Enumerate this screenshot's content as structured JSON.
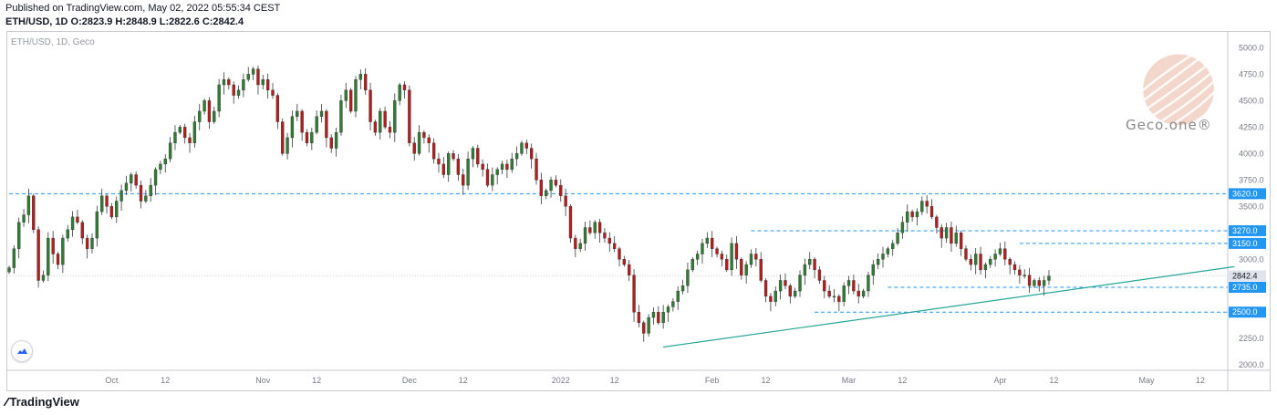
{
  "header": {
    "published": "Published on TradingView.com, May 02, 2022 05:55:34 CEST",
    "ohlc": "ETH/USD, 1D O:2823.9 H:2848.9 L:2822.6 C:2842.4"
  },
  "footer": {
    "brand": "TradingView"
  },
  "watermark": {
    "text": "Geco.one®"
  },
  "colors": {
    "up": "#26a69a",
    "down": "#b71c1c",
    "upBody": "#2e7d32",
    "level": "#2196f3",
    "trend": "#26a69a",
    "current": "#787b86"
  },
  "chart_data": {
    "type": "candlestick",
    "symbol_label": "ETH/USD, 1D, Geco",
    "y_range": [
      1950,
      5150
    ],
    "y_ticks": [
      2000.0,
      2250.0,
      2500.0,
      2750.0,
      3000.0,
      3250.0,
      3500.0,
      3750.0,
      4000.0,
      4250.0,
      4500.0,
      4750.0,
      5000.0
    ],
    "x_labels": [
      {
        "day": 21,
        "label": "Oct"
      },
      {
        "day": 32,
        "label": "12"
      },
      {
        "day": 52,
        "label": "Nov"
      },
      {
        "day": 63,
        "label": "12"
      },
      {
        "day": 82,
        "label": "Dec"
      },
      {
        "day": 93,
        "label": "12"
      },
      {
        "day": 113,
        "label": "2022"
      },
      {
        "day": 124,
        "label": "12"
      },
      {
        "day": 144,
        "label": "Feb"
      },
      {
        "day": 155,
        "label": "12"
      },
      {
        "day": 172,
        "label": "Mar"
      },
      {
        "day": 183,
        "label": "12"
      },
      {
        "day": 203,
        "label": "Apr"
      },
      {
        "day": 214,
        "label": "12"
      },
      {
        "day": 233,
        "label": "May"
      },
      {
        "day": 244,
        "label": "12"
      }
    ],
    "levels": [
      {
        "value": 3620.0,
        "label": "3620.0",
        "from_day": 0
      },
      {
        "value": 3270.0,
        "label": "3270.0",
        "from_day": 152
      },
      {
        "value": 3150.0,
        "label": "3150.0",
        "from_day": 207
      },
      {
        "value": 2735.0,
        "label": "2735.0",
        "from_day": 180
      },
      {
        "value": 2500.0,
        "label": "2500.0",
        "from_day": 165
      }
    ],
    "current": {
      "value": 2842.4,
      "label": "2842.4"
    },
    "trendline": {
      "from": [
        134,
        2170
      ],
      "to": [
        251,
        2930
      ]
    },
    "closes": [
      2920,
      3100,
      3350,
      3420,
      3600,
      3280,
      2800,
      2850,
      3200,
      3050,
      2950,
      3200,
      3280,
      3400,
      3350,
      3200,
      3100,
      3200,
      3450,
      3600,
      3500,
      3400,
      3550,
      3650,
      3720,
      3800,
      3700,
      3550,
      3600,
      3700,
      3850,
      3900,
      3950,
      4100,
      4200,
      4250,
      4150,
      4100,
      4300,
      4400,
      4500,
      4300,
      4400,
      4650,
      4700,
      4650,
      4550,
      4600,
      4700,
      4750,
      4800,
      4650,
      4700,
      4600,
      4550,
      4300,
      4000,
      4150,
      4350,
      4400,
      4200,
      4100,
      4200,
      4350,
      4400,
      4150,
      4050,
      4200,
      4500,
      4600,
      4400,
      4700,
      4750,
      4600,
      4300,
      4200,
      4400,
      4250,
      4200,
      4500,
      4650,
      4600,
      4100,
      4000,
      4200,
      4150,
      4100,
      3950,
      3900,
      3800,
      4000,
      3950,
      3800,
      3700,
      3950,
      4050,
      3900,
      3850,
      3700,
      3800,
      3850,
      3900,
      3850,
      3950,
      4000,
      4100,
      4050,
      3950,
      3750,
      3600,
      3650,
      3750,
      3700,
      3600,
      3500,
      3200,
      3100,
      3150,
      3300,
      3250,
      3350,
      3250,
      3200,
      3150,
      3100,
      3000,
      2950,
      2850,
      2500,
      2400,
      2300,
      2450,
      2500,
      2400,
      2500,
      2550,
      2600,
      2700,
      2750,
      2900,
      3000,
      3050,
      3150,
      3200,
      3100,
      3050,
      3000,
      2900,
      3150,
      3000,
      2850,
      2950,
      3050,
      3000,
      2800,
      2650,
      2600,
      2700,
      2800,
      2750,
      2650,
      2700,
      2850,
      2950,
      3000,
      2900,
      2800,
      2700,
      2650,
      2650,
      2600,
      2750,
      2800,
      2700,
      2650,
      2700,
      2850,
      2950,
      3000,
      3050,
      3100,
      3150,
      3250,
      3350,
      3450,
      3400,
      3450,
      3550,
      3500,
      3400,
      3300,
      3200,
      3300,
      3150,
      3250,
      3100,
      3000,
      2950,
      3050,
      2900,
      2950,
      3000,
      3050,
      3100,
      3000,
      2950,
      2900,
      2850,
      2850,
      2750,
      2800,
      2750,
      2800,
      2842
    ],
    "candles": [
      [
        2823.9,
        2848.9,
        2822.6,
        2842.4
      ]
    ]
  }
}
